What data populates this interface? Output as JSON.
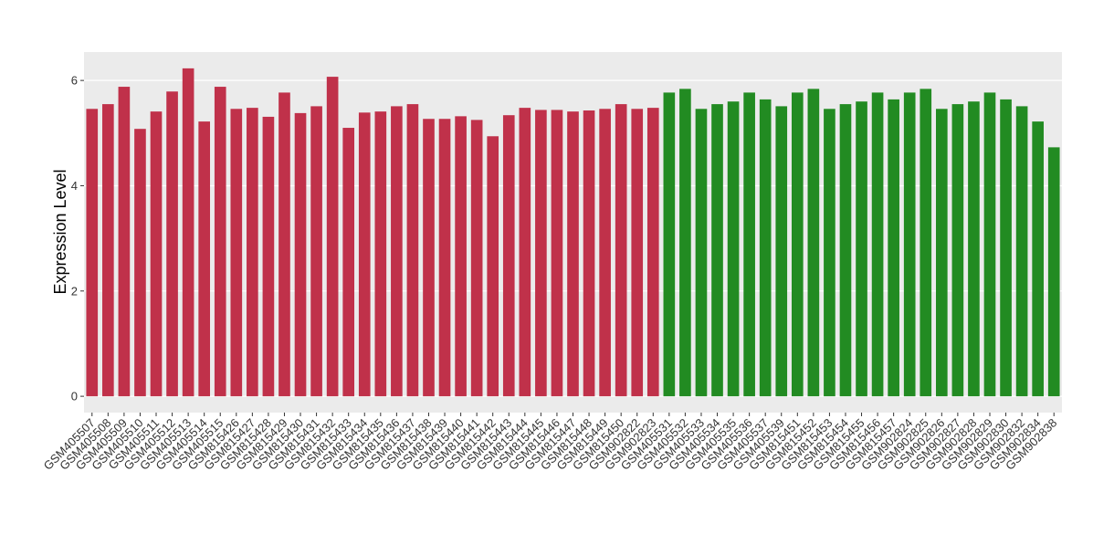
{
  "chart_data": {
    "type": "bar",
    "y_axis_label": "Expression Level",
    "categories": [
      "GSM405507",
      "GSM405508",
      "GSM405509",
      "GSM405510",
      "GSM405511",
      "GSM405512",
      "GSM405513",
      "GSM405514",
      "GSM405515",
      "GSM815426",
      "GSM815427",
      "GSM815428",
      "GSM815429",
      "GSM815430",
      "GSM815431",
      "GSM815432",
      "GSM815433",
      "GSM815434",
      "GSM815435",
      "GSM815436",
      "GSM815437",
      "GSM815438",
      "GSM815439",
      "GSM815440",
      "GSM815441",
      "GSM815442",
      "GSM815443",
      "GSM815444",
      "GSM815445",
      "GSM815446",
      "GSM815447",
      "GSM815448",
      "GSM815449",
      "GSM815450",
      "GSM902822",
      "GSM902823",
      "GSM405531",
      "GSM405532",
      "GSM405533",
      "GSM405534",
      "GSM405535",
      "GSM405536",
      "GSM405537",
      "GSM405539",
      "GSM815451",
      "GSM815452",
      "GSM815453",
      "GSM815454",
      "GSM815455",
      "GSM815456",
      "GSM815457",
      "GSM902824",
      "GSM902825",
      "GSM902826",
      "GSM902827",
      "GSM902828",
      "GSM902829",
      "GSM902830",
      "GSM902832",
      "GSM902834",
      "GSM902838"
    ],
    "values": [
      5.46,
      5.55,
      5.88,
      5.08,
      5.41,
      5.79,
      6.23,
      5.22,
      5.88,
      5.46,
      5.48,
      5.31,
      5.77,
      5.38,
      5.51,
      6.07,
      5.1,
      5.39,
      5.41,
      5.51,
      5.55,
      5.27,
      5.27,
      5.32,
      5.25,
      4.94,
      5.34,
      5.48,
      5.44,
      5.44,
      5.41,
      5.43,
      5.46,
      5.55,
      5.46,
      5.48,
      5.77,
      5.84,
      5.46,
      5.55,
      5.6,
      5.77,
      5.64,
      5.51,
      5.77,
      5.84,
      5.46,
      5.55,
      5.6,
      5.77,
      5.64,
      5.77,
      5.84,
      5.46,
      5.55,
      5.6,
      5.77,
      5.64,
      5.51,
      5.22,
      4.73
    ],
    "colors": [
      "#c0314a",
      "#c0314a",
      "#c0314a",
      "#c0314a",
      "#c0314a",
      "#c0314a",
      "#c0314a",
      "#c0314a",
      "#c0314a",
      "#c0314a",
      "#c0314a",
      "#c0314a",
      "#c0314a",
      "#c0314a",
      "#c0314a",
      "#c0314a",
      "#c0314a",
      "#c0314a",
      "#c0314a",
      "#c0314a",
      "#c0314a",
      "#c0314a",
      "#c0314a",
      "#c0314a",
      "#c0314a",
      "#c0314a",
      "#c0314a",
      "#c0314a",
      "#c0314a",
      "#c0314a",
      "#c0314a",
      "#c0314a",
      "#c0314a",
      "#c0314a",
      "#c0314a",
      "#c0314a",
      "#228b22",
      "#228b22",
      "#228b22",
      "#228b22",
      "#228b22",
      "#228b22",
      "#228b22",
      "#228b22",
      "#228b22",
      "#228b22",
      "#228b22",
      "#228b22",
      "#228b22",
      "#228b22",
      "#228b22",
      "#228b22",
      "#228b22",
      "#228b22",
      "#228b22",
      "#228b22",
      "#228b22",
      "#228b22",
      "#228b22",
      "#228b22",
      "#228b22"
    ],
    "ylim": [
      -0.31,
      6.54
    ],
    "yticks": [
      0,
      2,
      4,
      6
    ],
    "grid": true
  }
}
